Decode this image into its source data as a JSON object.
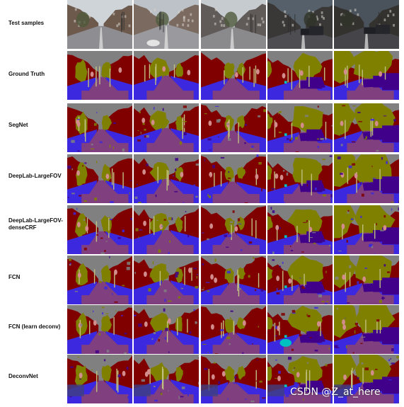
{
  "rows": [
    {
      "label": "Test samples",
      "kind": "photo"
    },
    {
      "label": "Ground Truth",
      "kind": "gt"
    },
    {
      "label": "SegNet",
      "kind": "seg"
    },
    {
      "label": "DeepLab-LargeFOV",
      "kind": "seg"
    },
    {
      "label": "DeepLab-LargeFOV-\ndenseCRF",
      "kind": "seg"
    },
    {
      "label": "FCN",
      "kind": "seg"
    },
    {
      "label": "FCN (learn deconv)",
      "kind": "seg"
    },
    {
      "label": "DeconvNet",
      "kind": "seg"
    }
  ],
  "columns": 5,
  "class_colors": {
    "sky": "#808080",
    "building": "#800000",
    "tree": "#808000",
    "road": "#804080",
    "pavement": "#3c28de",
    "car": "#40008a",
    "pole": "#c0c080",
    "pedestrian": "#d28c8c",
    "sign": "#c08080",
    "bicyclist": "#00c0c0",
    "fence": "#404080"
  },
  "watermark": "CSDN @Z_at_here"
}
